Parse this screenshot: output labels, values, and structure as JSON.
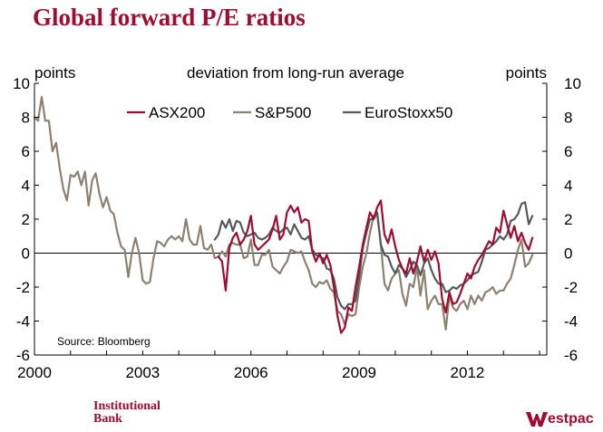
{
  "chart_data": {
    "type": "line",
    "title": "Global forward P/E ratios",
    "subtitle": "deviation from long-run average",
    "ylabel_left": "points",
    "ylabel_right": "points",
    "ylim": [
      -6,
      10
    ],
    "yticks": [
      -6,
      -4,
      -2,
      0,
      2,
      4,
      6,
      8,
      10
    ],
    "xlim": [
      2000,
      2014.2
    ],
    "xticks": [
      2000,
      2003,
      2006,
      2009,
      2012
    ],
    "source": "Source: Bloomberg",
    "series": [
      {
        "name": "ASX200",
        "color": "#a00b2e",
        "x": [
          2005.1,
          2005.2,
          2005.3,
          2005.4,
          2005.5,
          2005.6,
          2005.7,
          2005.8,
          2005.9,
          2006.0,
          2006.1,
          2006.2,
          2006.3,
          2006.4,
          2006.5,
          2006.6,
          2006.7,
          2006.8,
          2006.9,
          2007.0,
          2007.1,
          2007.2,
          2007.3,
          2007.4,
          2007.5,
          2007.6,
          2007.7,
          2007.8,
          2007.9,
          2008.0,
          2008.1,
          2008.2,
          2008.3,
          2008.4,
          2008.5,
          2008.6,
          2008.7,
          2008.8,
          2008.9,
          2009.0,
          2009.1,
          2009.2,
          2009.3,
          2009.4,
          2009.5,
          2009.6,
          2009.7,
          2009.8,
          2009.9,
          2010.0,
          2010.1,
          2010.2,
          2010.3,
          2010.4,
          2010.5,
          2010.6,
          2010.7,
          2010.8,
          2010.9,
          2011.0,
          2011.1,
          2011.2,
          2011.3,
          2011.4,
          2011.5,
          2011.6,
          2011.7,
          2011.8,
          2011.9,
          2012.0,
          2012.1,
          2012.2,
          2012.3,
          2012.4,
          2012.5,
          2012.6,
          2012.7,
          2012.8,
          2012.9,
          2013.0,
          2013.1,
          2013.2,
          2013.3,
          2013.4,
          2013.5,
          2013.6,
          2013.7,
          2013.8
        ],
        "values": [
          -0.2,
          -0.5,
          -2.2,
          0.3,
          0.9,
          1.2,
          0.5,
          0.8,
          1.3,
          2.2,
          0.5,
          0.2,
          0.4,
          0.6,
          0.8,
          1.4,
          2.2,
          0.8,
          1.1,
          2.4,
          2.8,
          2.4,
          2.7,
          1.8,
          2.0,
          1.9,
          0.1,
          -0.5,
          0.0,
          -0.6,
          -0.1,
          -0.7,
          -2.0,
          -3.7,
          -4.7,
          -4.4,
          -3.2,
          -3.4,
          -2.0,
          -0.8,
          0.5,
          1.5,
          2.4,
          2.0,
          2.7,
          3.1,
          1.1,
          0.6,
          1.4,
          0.4,
          -0.4,
          -0.9,
          -1.2,
          -0.3,
          -1.2,
          -0.5,
          0.4,
          -0.5,
          0.2,
          -0.4,
          0.1,
          -0.6,
          -2.7,
          -3.5,
          -2.3,
          -3.0,
          -2.9,
          -2.4,
          -1.8,
          -1.2,
          -1.5,
          -0.8,
          -0.4,
          -0.1,
          0.3,
          0.7,
          0.5,
          1.5,
          1.2,
          2.5,
          1.7,
          0.9,
          1.6,
          0.7,
          1.2,
          0.6,
          0.2,
          0.9
        ]
      },
      {
        "name": "S&P500",
        "color": "#8c8070",
        "x": [
          2000.0,
          2000.1,
          2000.2,
          2000.3,
          2000.4,
          2000.5,
          2000.6,
          2000.7,
          2000.8,
          2000.9,
          2001.0,
          2001.1,
          2001.2,
          2001.3,
          2001.4,
          2001.5,
          2001.6,
          2001.7,
          2001.8,
          2001.9,
          2002.0,
          2002.1,
          2002.2,
          2002.3,
          2002.4,
          2002.5,
          2002.6,
          2002.7,
          2002.8,
          2002.9,
          2003.0,
          2003.1,
          2003.2,
          2003.3,
          2003.4,
          2003.5,
          2003.6,
          2003.7,
          2003.8,
          2003.9,
          2004.0,
          2004.1,
          2004.2,
          2004.3,
          2004.4,
          2004.5,
          2004.6,
          2004.7,
          2004.8,
          2004.9,
          2005.0,
          2005.1,
          2005.2,
          2005.3,
          2005.4,
          2005.5,
          2005.6,
          2005.7,
          2005.8,
          2005.9,
          2006.0,
          2006.1,
          2006.2,
          2006.3,
          2006.4,
          2006.5,
          2006.6,
          2006.7,
          2006.8,
          2006.9,
          2007.0,
          2007.1,
          2007.2,
          2007.3,
          2007.4,
          2007.5,
          2007.6,
          2007.7,
          2007.8,
          2007.9,
          2008.0,
          2008.1,
          2008.2,
          2008.3,
          2008.4,
          2008.5,
          2008.6,
          2008.7,
          2008.8,
          2008.9,
          2009.0,
          2009.1,
          2009.2,
          2009.3,
          2009.4,
          2009.5,
          2009.6,
          2009.7,
          2009.8,
          2009.9,
          2010.0,
          2010.1,
          2010.2,
          2010.3,
          2010.4,
          2010.5,
          2010.6,
          2010.7,
          2010.8,
          2010.9,
          2011.0,
          2011.1,
          2011.2,
          2011.3,
          2011.4,
          2011.5,
          2011.6,
          2011.7,
          2011.8,
          2011.9,
          2012.0,
          2012.1,
          2012.2,
          2012.3,
          2012.4,
          2012.5,
          2012.6,
          2012.7,
          2012.8,
          2012.9,
          2013.0,
          2013.1,
          2013.2,
          2013.3,
          2013.4,
          2013.5,
          2013.6,
          2013.7,
          2013.8
        ],
        "values": [
          8.0,
          7.8,
          9.2,
          7.8,
          7.8,
          6.0,
          6.5,
          5.0,
          3.8,
          3.1,
          4.6,
          4.5,
          4.8,
          4.0,
          4.8,
          2.8,
          4.3,
          4.7,
          3.5,
          2.7,
          3.3,
          2.5,
          2.3,
          1.2,
          0.4,
          0.2,
          -1.4,
          0.0,
          0.9,
          0.0,
          -1.6,
          -1.8,
          -1.7,
          -0.3,
          0.7,
          0.6,
          0.4,
          0.8,
          1.0,
          0.8,
          1.0,
          0.7,
          2.0,
          0.8,
          0.5,
          0.5,
          1.6,
          0.3,
          0.2,
          0.5,
          -0.3,
          -0.2,
          0.1,
          -0.2,
          0.5,
          0.6,
          0.5,
          0.5,
          -0.3,
          -0.2,
          0.8,
          -0.7,
          -0.7,
          -0.1,
          -0.1,
          0.2,
          -0.8,
          -1.0,
          -1.2,
          -0.8,
          -0.5,
          0.2,
          0.1,
          0.0,
          0.1,
          -0.5,
          -1.0,
          -1.8,
          -2.0,
          -1.7,
          -1.8,
          -1.6,
          -2.1,
          -2.3,
          -3.4,
          -3.6,
          -4.2,
          -3.6,
          -3.7,
          -3.6,
          -2.0,
          -0.8,
          0.0,
          1.2,
          2.2,
          2.3,
          0.5,
          -1.8,
          -2.2,
          -1.5,
          -1.2,
          -1.0,
          -2.4,
          -3.1,
          -1.8,
          -2.0,
          -0.8,
          -2.5,
          -1.0,
          -3.3,
          -2.8,
          -2.5,
          -3.0,
          -3.0,
          -4.5,
          -2.5,
          -3.2,
          -3.4,
          -3.0,
          -2.8,
          -3.3,
          -2.5,
          -3.0,
          -2.5,
          -2.8,
          -2.3,
          -2.2,
          -2.0,
          -2.4,
          -2.2,
          -2.2,
          -1.8,
          -1.5,
          -0.7,
          0.2,
          0.8,
          -0.8,
          -0.6,
          -0.1
        ]
      },
      {
        "name": "EuroStoxx50",
        "color": "#55595d",
        "x": [
          2005.0,
          2005.1,
          2005.2,
          2005.3,
          2005.4,
          2005.5,
          2005.6,
          2005.7,
          2005.8,
          2005.9,
          2006.0,
          2006.1,
          2006.2,
          2006.3,
          2006.4,
          2006.5,
          2006.6,
          2006.7,
          2006.8,
          2006.9,
          2007.0,
          2007.1,
          2007.2,
          2007.3,
          2007.4,
          2007.5,
          2007.6,
          2007.7,
          2007.8,
          2007.9,
          2008.0,
          2008.1,
          2008.2,
          2008.3,
          2008.4,
          2008.5,
          2008.6,
          2008.7,
          2008.8,
          2008.9,
          2009.0,
          2009.1,
          2009.2,
          2009.3,
          2009.4,
          2009.5,
          2009.6,
          2009.7,
          2009.8,
          2009.9,
          2010.0,
          2010.1,
          2010.2,
          2010.3,
          2010.4,
          2010.5,
          2010.6,
          2010.7,
          2010.8,
          2010.9,
          2011.0,
          2011.1,
          2011.2,
          2011.3,
          2011.4,
          2011.5,
          2011.6,
          2011.7,
          2011.8,
          2011.9,
          2012.0,
          2012.1,
          2012.2,
          2012.3,
          2012.4,
          2012.5,
          2012.6,
          2012.7,
          2012.8,
          2012.9,
          2013.0,
          2013.1,
          2013.2,
          2013.3,
          2013.4,
          2013.5,
          2013.6,
          2013.7,
          2013.8
        ],
        "values": [
          0.8,
          1.1,
          1.9,
          1.5,
          2.0,
          1.3,
          1.9,
          1.8,
          1.2,
          1.0,
          1.1,
          1.2,
          0.9,
          0.8,
          0.9,
          1.1,
          1.5,
          1.3,
          1.2,
          1.4,
          1.5,
          1.1,
          1.7,
          1.3,
          0.9,
          0.8,
          1.0,
          0.2,
          -0.1,
          -0.2,
          -0.3,
          -0.9,
          -1.0,
          -1.5,
          -2.6,
          -3.1,
          -3.3,
          -3.0,
          -3.0,
          -2.8,
          -1.4,
          0.3,
          1.2,
          2.0,
          2.0,
          2.4,
          0.5,
          -0.1,
          -0.2,
          -0.8,
          -1.2,
          -0.7,
          -0.9,
          -1.4,
          -1.0,
          -0.5,
          -0.7,
          -1.3,
          -0.6,
          -0.3,
          -1.0,
          -1.5,
          -1.8,
          -1.8,
          -2.3,
          -2.2,
          -2.0,
          -2.1,
          -1.9,
          -1.8,
          -1.6,
          -1.3,
          -1.2,
          -1.1,
          -0.5,
          0.2,
          0.3,
          0.5,
          0.7,
          1.0,
          0.8,
          1.1,
          1.9,
          2.0,
          2.3,
          2.9,
          3.0,
          1.7,
          2.2
        ]
      }
    ]
  },
  "branding": {
    "institutional": [
      "Institutional",
      "Bank"
    ],
    "westpac": "estpac"
  }
}
